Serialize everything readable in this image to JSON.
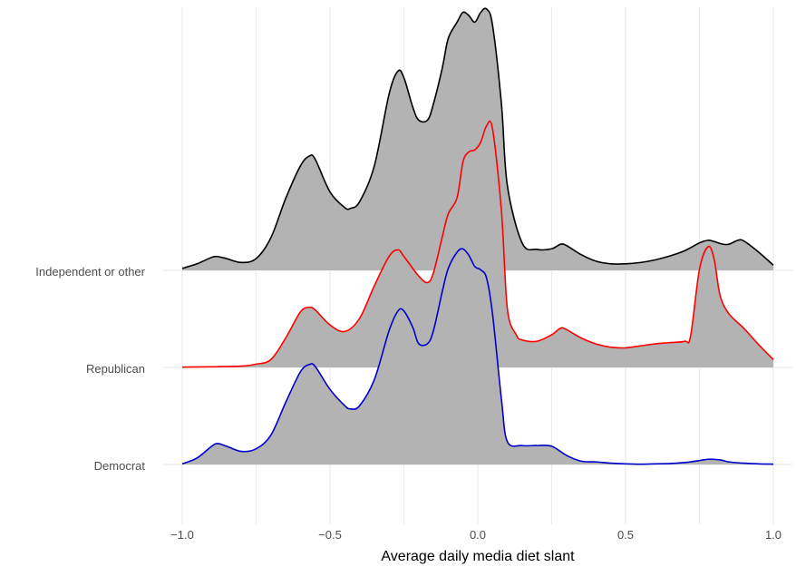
{
  "chart_data": {
    "type": "area",
    "subtype": "ridgeline",
    "title": "",
    "xlabel": "Average daily media diet slant",
    "ylabel": "",
    "xlim": [
      -1.0,
      1.0
    ],
    "x_ticks": [
      -1.0,
      -0.5,
      0.0,
      0.5,
      1.0
    ],
    "x_tick_labels": [
      "−1.0",
      "−0.5",
      "0.0",
      "0.5",
      "1.0"
    ],
    "minor_grid_x": [
      -0.75,
      -0.25,
      0.25,
      0.75
    ],
    "grid": true,
    "legend": "none",
    "fill_color": "#b3b3b3",
    "categories": [
      "Democrat",
      "Republican",
      "Independent or other"
    ],
    "series": [
      {
        "name": "Democrat",
        "color": "#0000cc",
        "x": [
          -1.0,
          -0.95,
          -0.9,
          -0.88,
          -0.85,
          -0.8,
          -0.75,
          -0.7,
          -0.65,
          -0.6,
          -0.57,
          -0.55,
          -0.5,
          -0.45,
          -0.43,
          -0.4,
          -0.35,
          -0.3,
          -0.27,
          -0.25,
          -0.22,
          -0.2,
          -0.17,
          -0.15,
          -0.12,
          -0.1,
          -0.07,
          -0.05,
          -0.03,
          -0.01,
          0.01,
          0.03,
          0.05,
          0.08,
          0.1,
          0.15,
          0.2,
          0.25,
          0.3,
          0.35,
          0.4,
          0.45,
          0.5,
          0.55,
          0.6,
          0.65,
          0.7,
          0.75,
          0.78,
          0.82,
          0.85,
          0.9,
          0.95,
          1.0
        ],
        "y": [
          0.01,
          0.1,
          0.28,
          0.32,
          0.28,
          0.2,
          0.24,
          0.45,
          0.95,
          1.42,
          1.53,
          1.5,
          1.15,
          0.9,
          0.85,
          0.9,
          1.3,
          2.05,
          2.35,
          2.35,
          2.1,
          1.85,
          1.85,
          2.05,
          2.65,
          3.0,
          3.25,
          3.3,
          3.2,
          3.03,
          2.98,
          2.85,
          2.3,
          1.0,
          0.35,
          0.29,
          0.29,
          0.28,
          0.14,
          0.05,
          0.04,
          0.02,
          0.01,
          0.005,
          0.01,
          0.015,
          0.03,
          0.06,
          0.08,
          0.07,
          0.04,
          0.02,
          0.01,
          0.005
        ]
      },
      {
        "name": "Republican",
        "color": "#ff0000",
        "x": [
          -1.0,
          -0.9,
          -0.8,
          -0.75,
          -0.7,
          -0.65,
          -0.6,
          -0.57,
          -0.55,
          -0.5,
          -0.45,
          -0.4,
          -0.35,
          -0.3,
          -0.27,
          -0.25,
          -0.2,
          -0.17,
          -0.15,
          -0.12,
          -0.1,
          -0.07,
          -0.05,
          -0.03,
          -0.01,
          0.01,
          0.03,
          0.05,
          0.08,
          0.1,
          0.13,
          0.15,
          0.2,
          0.25,
          0.28,
          0.3,
          0.35,
          0.4,
          0.45,
          0.5,
          0.55,
          0.6,
          0.65,
          0.7,
          0.72,
          0.75,
          0.78,
          0.8,
          0.82,
          0.85,
          0.9,
          0.95,
          1.0
        ],
        "y": [
          0.005,
          0.01,
          0.02,
          0.05,
          0.12,
          0.45,
          0.85,
          0.92,
          0.88,
          0.65,
          0.55,
          0.75,
          1.25,
          1.7,
          1.8,
          1.7,
          1.4,
          1.3,
          1.45,
          2.0,
          2.35,
          2.6,
          3.15,
          3.3,
          3.33,
          3.45,
          3.7,
          3.65,
          2.4,
          0.9,
          0.5,
          0.42,
          0.4,
          0.5,
          0.6,
          0.58,
          0.45,
          0.36,
          0.31,
          0.3,
          0.33,
          0.36,
          0.38,
          0.4,
          0.48,
          1.5,
          1.85,
          1.65,
          1.1,
          0.82,
          0.6,
          0.35,
          0.12
        ]
      },
      {
        "name": "Independent or other",
        "color": "#000000",
        "x": [
          -1.0,
          -0.95,
          -0.9,
          -0.88,
          -0.85,
          -0.8,
          -0.75,
          -0.7,
          -0.65,
          -0.6,
          -0.57,
          -0.55,
          -0.5,
          -0.45,
          -0.43,
          -0.4,
          -0.35,
          -0.3,
          -0.27,
          -0.25,
          -0.22,
          -0.2,
          -0.17,
          -0.15,
          -0.12,
          -0.1,
          -0.07,
          -0.05,
          -0.03,
          -0.01,
          0.01,
          0.03,
          0.05,
          0.08,
          0.1,
          0.15,
          0.2,
          0.25,
          0.28,
          0.3,
          0.35,
          0.4,
          0.45,
          0.5,
          0.55,
          0.6,
          0.65,
          0.7,
          0.75,
          0.78,
          0.8,
          0.83,
          0.85,
          0.88,
          0.9,
          0.95,
          1.0
        ],
        "y": [
          0.03,
          0.1,
          0.2,
          0.21,
          0.18,
          0.12,
          0.18,
          0.5,
          1.1,
          1.6,
          1.75,
          1.7,
          1.2,
          0.96,
          0.95,
          1.05,
          1.6,
          2.7,
          3.05,
          2.95,
          2.5,
          2.3,
          2.3,
          2.55,
          3.1,
          3.55,
          3.8,
          3.95,
          3.9,
          3.8,
          3.95,
          4.0,
          3.75,
          2.55,
          1.3,
          0.42,
          0.32,
          0.33,
          0.4,
          0.38,
          0.24,
          0.14,
          0.1,
          0.1,
          0.12,
          0.16,
          0.22,
          0.3,
          0.42,
          0.46,
          0.44,
          0.4,
          0.4,
          0.46,
          0.45,
          0.28,
          0.08
        ]
      }
    ]
  }
}
